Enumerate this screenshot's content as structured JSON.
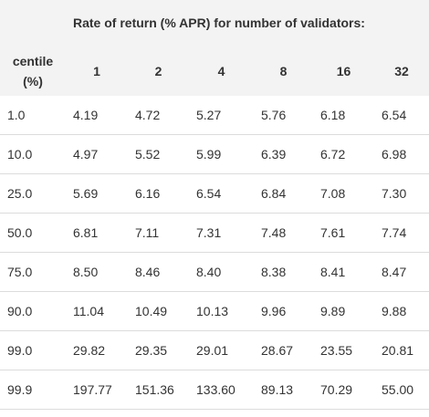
{
  "table": {
    "title": "Rate of return (% APR) for number of validators:",
    "header": [
      "centile (%)",
      "1",
      "2",
      "4",
      "8",
      "16",
      "32"
    ],
    "rows": [
      [
        "1.0",
        "4.19",
        "4.72",
        "5.27",
        "5.76",
        "6.18",
        "6.54"
      ],
      [
        "10.0",
        "4.97",
        "5.52",
        "5.99",
        "6.39",
        "6.72",
        "6.98"
      ],
      [
        "25.0",
        "5.69",
        "6.16",
        "6.54",
        "6.84",
        "7.08",
        "7.30"
      ],
      [
        "50.0",
        "6.81",
        "7.11",
        "7.31",
        "7.48",
        "7.61",
        "7.74"
      ],
      [
        "75.0",
        "8.50",
        "8.46",
        "8.40",
        "8.38",
        "8.41",
        "8.47"
      ],
      [
        "90.0",
        "11.04",
        "10.49",
        "10.13",
        "9.96",
        "9.89",
        "9.88"
      ],
      [
        "99.0",
        "29.82",
        "29.35",
        "29.01",
        "28.67",
        "23.55",
        "20.81"
      ],
      [
        "99.9",
        "197.77",
        "151.36",
        "133.60",
        "89.13",
        "70.29",
        "55.00"
      ]
    ]
  }
}
